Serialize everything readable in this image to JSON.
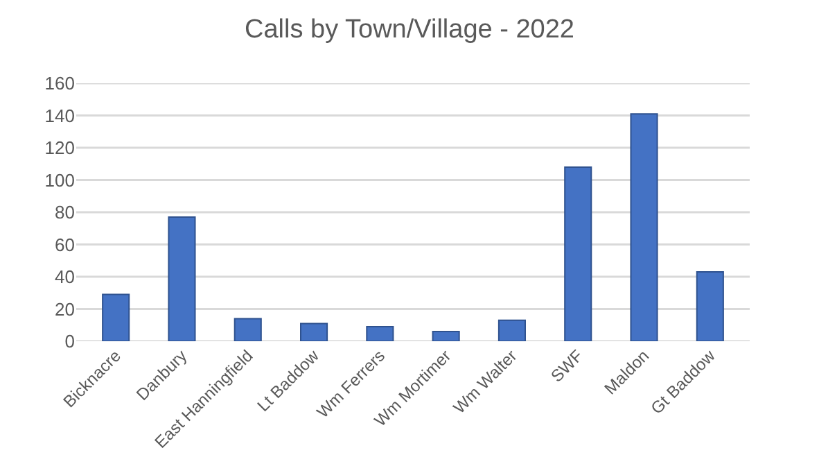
{
  "chart_data": {
    "type": "bar",
    "title": "Calls by Town/Village - 2022",
    "categories": [
      "Bicknacre",
      "Danbury",
      "East Hanningfield",
      "Lt Baddow",
      "Wm Ferrers",
      "Wm Mortimer",
      "Wm Walter",
      "SWF",
      "Maldon",
      "Gt Baddow"
    ],
    "values": [
      29,
      77,
      14,
      11,
      9,
      6,
      13,
      108,
      141,
      43
    ],
    "color": "#4472c4",
    "ylim": [
      0,
      160
    ],
    "yticks": [
      0,
      20,
      40,
      60,
      80,
      100,
      120,
      140,
      160
    ],
    "grid": "y"
  }
}
